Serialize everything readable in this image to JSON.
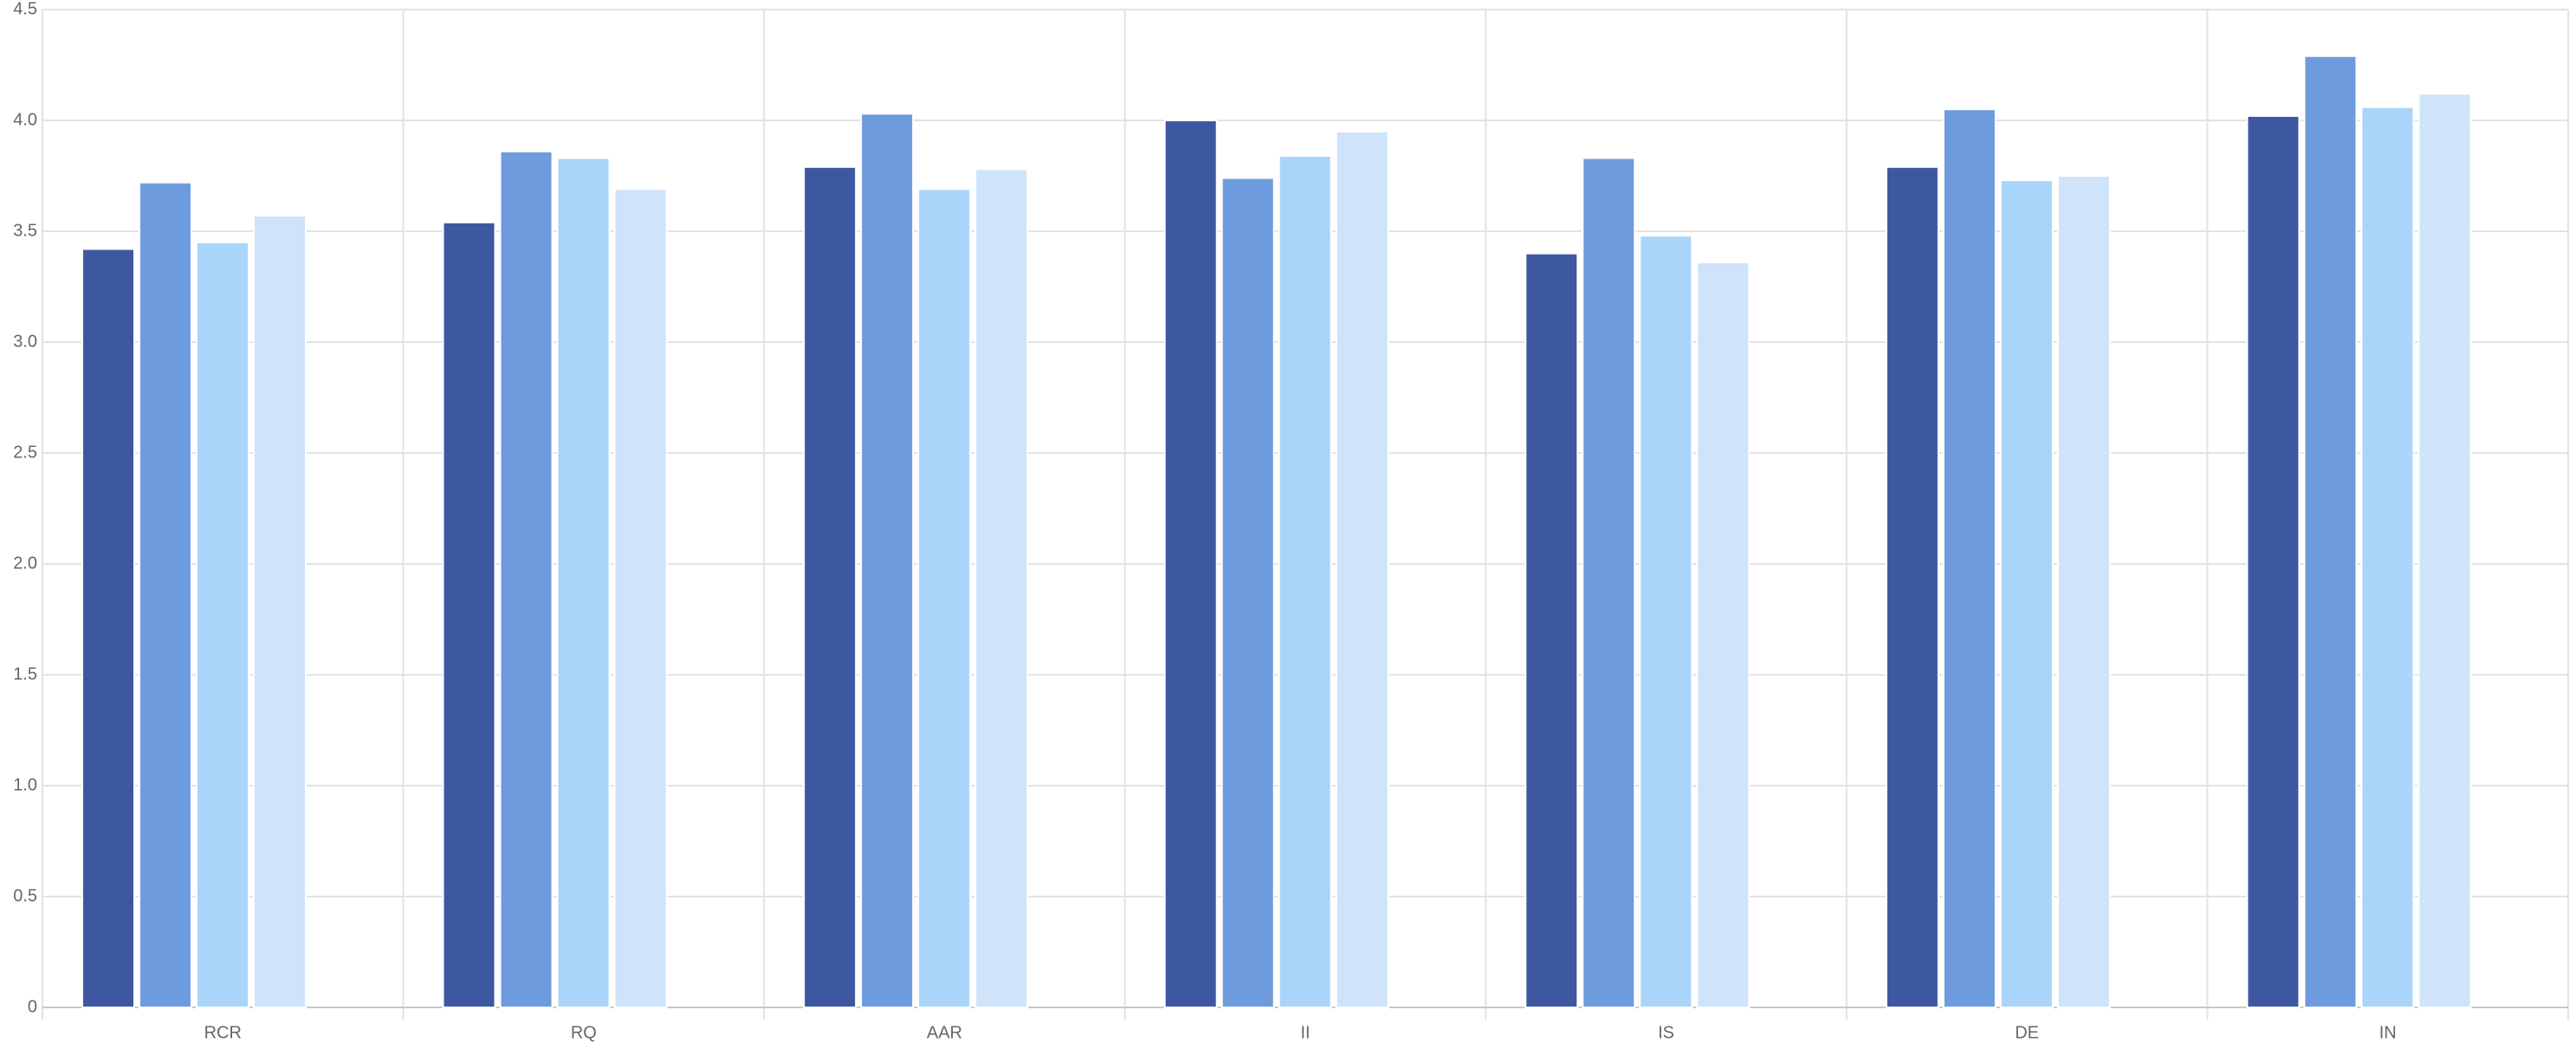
{
  "chart_data": {
    "type": "bar",
    "categories": [
      "RCR",
      "RQ",
      "AAR",
      "II",
      "IS",
      "DE",
      "IN"
    ],
    "series": [
      {
        "color": "#3d58a0",
        "values": [
          3.42,
          3.54,
          3.79,
          4.0,
          3.4,
          3.79,
          4.02
        ]
      },
      {
        "color": "#6d9bdd",
        "values": [
          3.72,
          3.86,
          4.03,
          3.74,
          3.83,
          4.05,
          4.29
        ]
      },
      {
        "color": "#a9d5fa",
        "values": [
          3.45,
          3.83,
          3.69,
          3.84,
          3.48,
          3.73,
          4.06
        ]
      },
      {
        "color": "#cfe3fa",
        "values": [
          3.57,
          3.69,
          3.78,
          3.95,
          3.36,
          3.75,
          4.12
        ]
      }
    ],
    "ylim": [
      0,
      4.5
    ],
    "yticks": [
      0,
      0.5,
      {
        "value": 1,
        "label": "1.0"
      },
      1.5,
      {
        "value": 2,
        "label": "2.0"
      },
      2.5,
      {
        "value": 3,
        "label": "3.0"
      },
      3.5,
      {
        "value": 4,
        "label": "4.0"
      },
      4.5
    ],
    "grid": true
  }
}
